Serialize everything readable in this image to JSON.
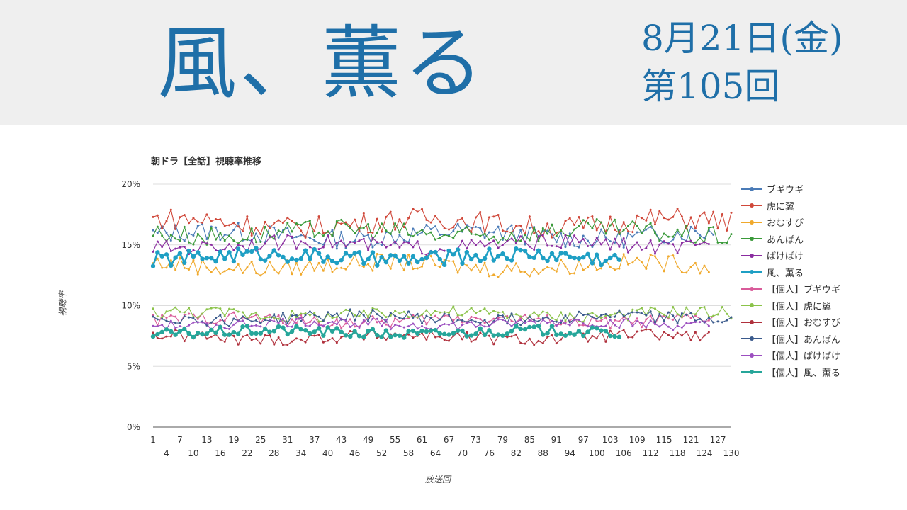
{
  "header": {
    "title": "風、薫る",
    "date": "8月21日(金)",
    "episode": "第105回"
  },
  "chart_data": {
    "type": "line",
    "title": "朝ドラ【全話】視聴率推移",
    "xlabel": "放送回",
    "ylabel": "視聴率",
    "ylim": [
      0,
      20
    ],
    "xlim": [
      1,
      130
    ],
    "y_ticks": [
      "0%",
      "5%",
      "10%",
      "15%",
      "20%"
    ],
    "x_ticks_top": [
      1,
      7,
      13,
      19,
      25,
      31,
      37,
      43,
      49,
      55,
      61,
      67,
      73,
      79,
      85,
      91,
      97,
      103,
      109,
      115,
      121,
      127
    ],
    "x_ticks_bottom": [
      4,
      10,
      16,
      22,
      28,
      34,
      40,
      46,
      52,
      58,
      64,
      70,
      76,
      82,
      88,
      94,
      100,
      106,
      112,
      118,
      124,
      130
    ],
    "grid": true,
    "legend_position": "right",
    "series": [
      {
        "name": "ブギウギ",
        "color": "#4a7bb7",
        "base": 15.8,
        "var": 0.8,
        "start": 1,
        "end": 126
      },
      {
        "name": "虎に翼",
        "color": "#d0483a",
        "base": 16.8,
        "var": 0.9,
        "start": 1,
        "end": 130
      },
      {
        "name": "おむすび",
        "color": "#f0a92c",
        "base": 13.3,
        "var": 0.7,
        "start": 1,
        "end": 125
      },
      {
        "name": "あんぱん",
        "color": "#3a9a3a",
        "base": 16.0,
        "var": 0.8,
        "start": 1,
        "end": 130
      },
      {
        "name": "ばけばけ",
        "color": "#8a2ca0",
        "base": 15.0,
        "var": 0.6,
        "start": 1,
        "end": 125
      },
      {
        "name": "風、薫る",
        "color": "#1e9fc4",
        "base": 14.0,
        "var": 0.6,
        "start": 1,
        "end": 105,
        "bold": true
      },
      {
        "name": "【個人】ブギウギ",
        "color": "#d95b9a",
        "base": 8.8,
        "var": 0.5,
        "start": 1,
        "end": 126
      },
      {
        "name": "【個人】虎に翼",
        "color": "#8bc34a",
        "base": 9.3,
        "var": 0.5,
        "start": 1,
        "end": 130
      },
      {
        "name": "【個人】おむすび",
        "color": "#b0303c",
        "base": 7.4,
        "var": 0.5,
        "start": 1,
        "end": 125
      },
      {
        "name": "【個人】あんぱん",
        "color": "#3a5a8c",
        "base": 9.0,
        "var": 0.5,
        "start": 1,
        "end": 130
      },
      {
        "name": "【個人】ばけばけ",
        "color": "#9c4fc0",
        "base": 8.5,
        "var": 0.4,
        "start": 1,
        "end": 125
      },
      {
        "name": "【個人】風、薫る",
        "color": "#26a69a",
        "base": 7.8,
        "var": 0.4,
        "start": 1,
        "end": 105,
        "bold": true
      }
    ]
  }
}
